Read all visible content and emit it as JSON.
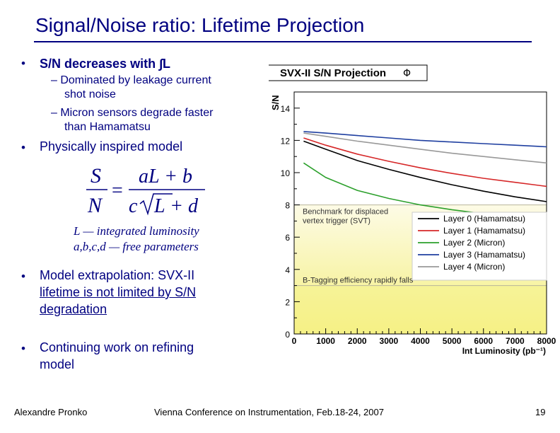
{
  "title": "Signal/Noise ratio: Lifetime Projection",
  "bullets": {
    "b1": "S/N decreases with ∫L",
    "b1_sub1_line1": "– Dominated by leakage current",
    "b1_sub1_line2": "shot noise",
    "b1_sub2_line1": "– Micron sensors degrade faster",
    "b1_sub2_line2": "than Hamamatsu",
    "b2": "Physically inspired model",
    "def1": "L — integrated luminosity",
    "def2": "a,b,c,d — free parameters",
    "b3_line1": "Model extrapolation: SVX-II",
    "b3_line2": "lifetime is not limited by S/N",
    "b3_line3": "degradation",
    "b4_line1": "Continuing work on refining",
    "b4_line2": "model"
  },
  "formula": {
    "lhs_num": "S",
    "lhs_den": "N",
    "equals": "=",
    "rhs_num": "aL + b",
    "rhs_den_c": "c",
    "rhs_den_rest": "L + d"
  },
  "footer": {
    "author": "Alexandre Pronko",
    "conference": "Vienna Conference on Instrumentation, Feb.18-24, 2007",
    "page": "19"
  },
  "chart_data": {
    "type": "line",
    "title": "SVX-II S/N Projection",
    "title_symbol": "Φ",
    "ylabel": "S/N",
    "xlabel": "Int Luminosity (pb⁻¹)",
    "xlim": [
      0,
      8000
    ],
    "ylim": [
      0,
      15
    ],
    "xticks": [
      0,
      1000,
      2000,
      3000,
      4000,
      5000,
      6000,
      7000,
      8000
    ],
    "yticks": [
      0,
      2,
      4,
      6,
      8,
      10,
      12,
      14
    ],
    "series": [
      {
        "name": "Layer 0 (Hamamatsu)",
        "color": "#000000",
        "x": [
          300,
          1000,
          2000,
          3000,
          4000,
          5000,
          6000,
          7000,
          8000
        ],
        "y": [
          11.95,
          11.45,
          10.75,
          10.2,
          9.7,
          9.25,
          8.85,
          8.5,
          8.2
        ]
      },
      {
        "name": "Layer 1 (Hamamatsu)",
        "color": "#d62728",
        "x": [
          300,
          1000,
          2000,
          3000,
          4000,
          5000,
          6000,
          7000,
          8000
        ],
        "y": [
          12.15,
          11.7,
          11.15,
          10.7,
          10.3,
          9.95,
          9.65,
          9.4,
          9.15
        ]
      },
      {
        "name": "Layer 2 (Micron)",
        "color": "#2ca02c",
        "x": [
          300,
          1000,
          2000,
          3000,
          4000,
          5000,
          6000,
          7000,
          8000
        ],
        "y": [
          10.6,
          9.7,
          8.9,
          8.4,
          8.0,
          7.7,
          7.45,
          7.2,
          7.0
        ]
      },
      {
        "name": "Layer 3 (Hamamatsu)",
        "color": "#1f3fa0",
        "x": [
          300,
          1000,
          2000,
          3000,
          4000,
          5000,
          6000,
          7000,
          8000
        ],
        "y": [
          12.55,
          12.45,
          12.3,
          12.15,
          12.0,
          11.9,
          11.8,
          11.7,
          11.6
        ]
      },
      {
        "name": "Layer 4 (Micron)",
        "color": "#999999",
        "x": [
          300,
          1000,
          2000,
          3000,
          4000,
          5000,
          6000,
          7000,
          8000
        ],
        "y": [
          12.45,
          12.25,
          11.95,
          11.7,
          11.45,
          11.2,
          11.0,
          10.8,
          10.6
        ]
      }
    ],
    "bands": {
      "svt_threshold": 8,
      "svt_label_line1": "Benchmark for displaced",
      "svt_label_line2": "vertex trigger (SVT)",
      "btag_threshold": 3,
      "btag_label": "B-Tagging efficiency rapidly falls"
    },
    "legend_position": "right",
    "colors": {
      "band_upper": "#fdfbe0",
      "band_lower": "#f6f28c",
      "frame": "#000000"
    }
  }
}
